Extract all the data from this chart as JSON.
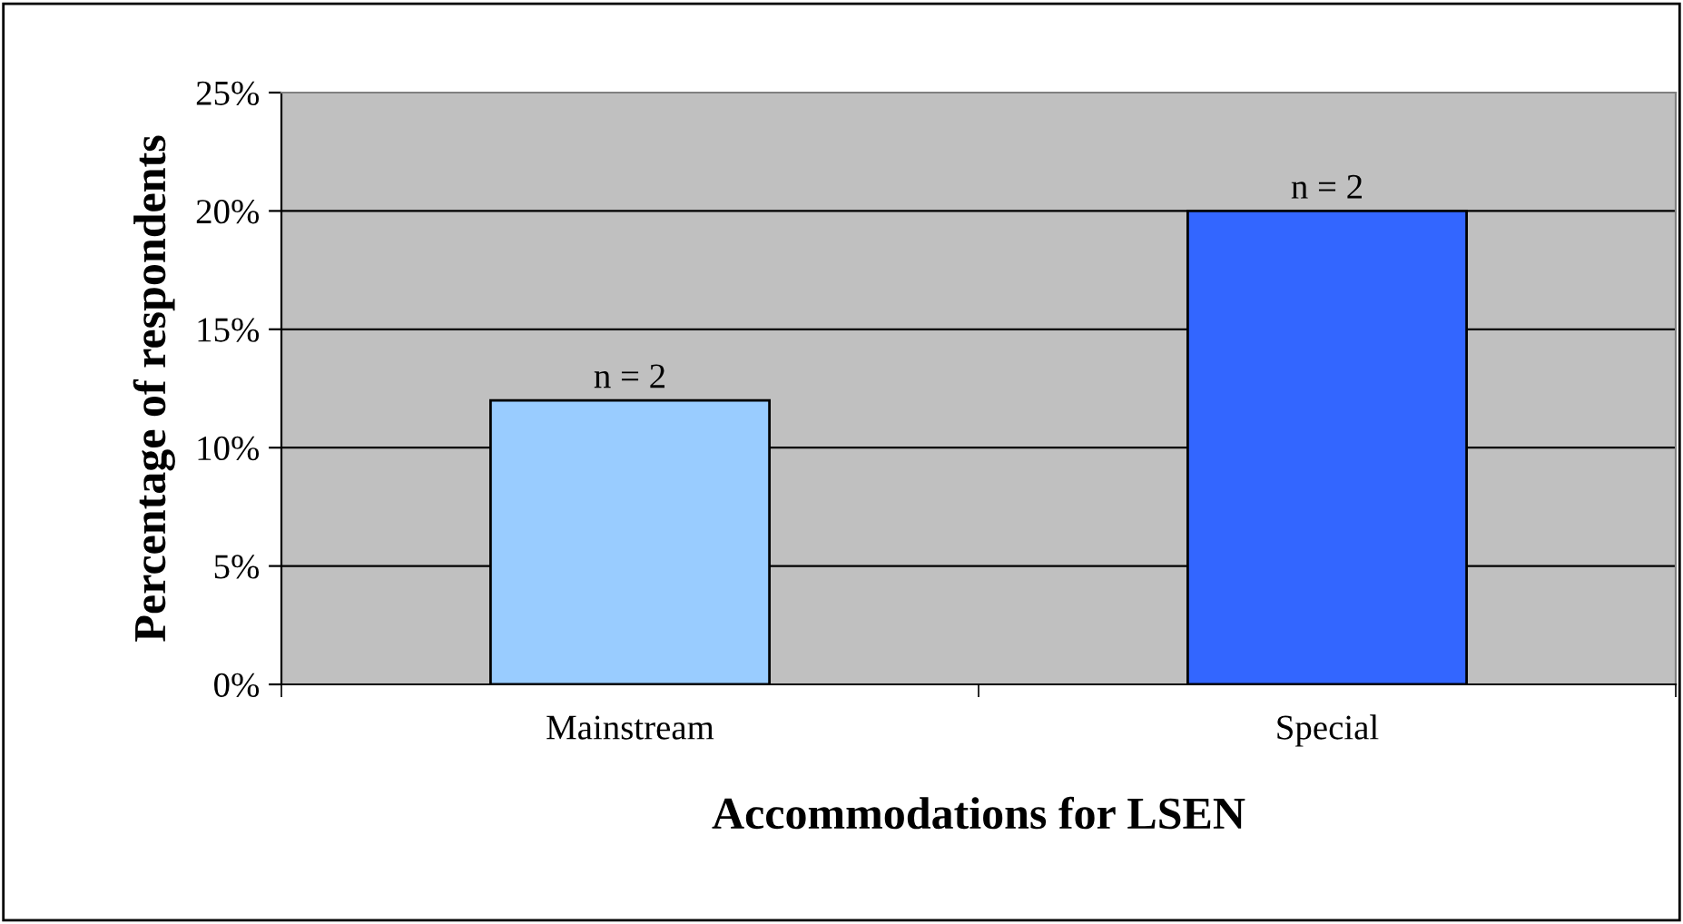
{
  "chart_data": {
    "type": "bar",
    "xlabel": "Accommodations for LSEN",
    "ylabel": "Percentage of respondents",
    "categories": [
      "Mainstream",
      "Special"
    ],
    "values": [
      12,
      20
    ],
    "colors": [
      "#99ccff",
      "#3366ff"
    ],
    "annotations": [
      {
        "text": "n = 2",
        "x": "Mainstream",
        "y": 12
      },
      {
        "text": "n = 2",
        "x": "Special",
        "y": 20
      }
    ],
    "ylim": [
      0,
      25
    ],
    "yticks": [
      {
        "value": 0,
        "label": "0%"
      },
      {
        "value": 5,
        "label": "5%"
      },
      {
        "value": 10,
        "label": "10%"
      },
      {
        "value": 15,
        "label": "15%"
      },
      {
        "value": 20,
        "label": "20%"
      },
      {
        "value": 25,
        "label": "25%"
      }
    ],
    "grid": "y",
    "legend": false
  }
}
